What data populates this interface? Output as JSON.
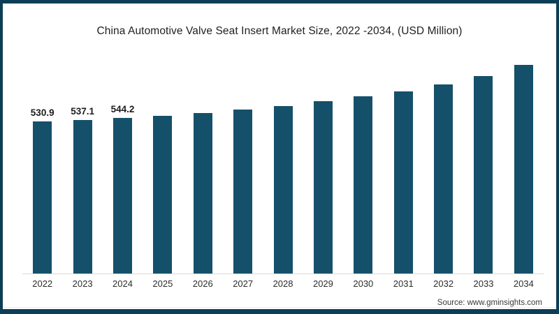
{
  "frame": {
    "border_color": "#0c3e55",
    "background": "#ffffff"
  },
  "chart_data": {
    "type": "bar",
    "title": "China Automotive Valve Seat Insert Market Size, 2022 -2034, (USD Million)",
    "xlabel": "",
    "ylabel": "",
    "categories": [
      "2022",
      "2023",
      "2024",
      "2025",
      "2026",
      "2027",
      "2028",
      "2029",
      "2030",
      "2031",
      "2032",
      "2033",
      "2034"
    ],
    "values": [
      530.9,
      537.1,
      544.2,
      551.5,
      561.2,
      572.2,
      585.5,
      602.5,
      618.3,
      635.3,
      659.6,
      688.8,
      728.9
    ],
    "data_labels": [
      "530.9",
      "537.1",
      "544.2",
      "",
      "",
      "",
      "",
      "",
      "",
      "",
      "",
      "",
      ""
    ],
    "ylim": [
      0,
      760
    ],
    "grid": false,
    "legend": false,
    "bar_color": "#15506a",
    "axis_line_color": "#d9d9d9"
  },
  "source": {
    "label": "Source: www.gminsights.com"
  }
}
